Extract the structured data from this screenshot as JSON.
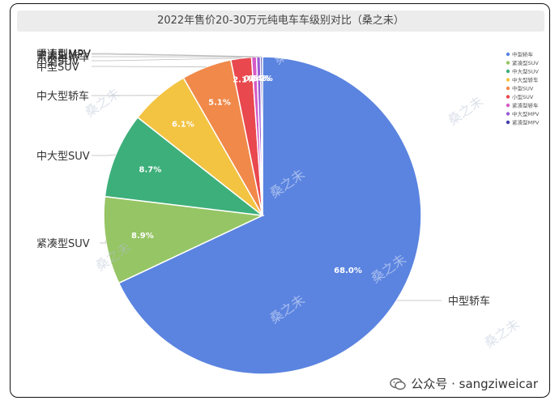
{
  "chart_data": {
    "type": "pie",
    "title": "2022年售价20-30万元纯电车车级别对比（桑之未）",
    "slices": [
      {
        "label": "中型轿车",
        "value": 68.0,
        "display": "68.0%",
        "color": "#5B84E0"
      },
      {
        "label": "紧凑型SUV",
        "value": 8.9,
        "display": "8.9%",
        "color": "#96C565"
      },
      {
        "label": "中大型SUV",
        "value": 8.7,
        "display": "8.7%",
        "color": "#3DAF7A"
      },
      {
        "label": "中大型轿车",
        "value": 6.1,
        "display": "6.1%",
        "color": "#F3C342"
      },
      {
        "label": "中型SUV",
        "value": 5.1,
        "display": "5.1%",
        "color": "#F0894A"
      },
      {
        "label": "小型SUV",
        "value": 2.1,
        "display": "2.1%",
        "color": "#E8484E"
      },
      {
        "label": "紧凑型轿车",
        "value": 0.5,
        "display": "0.5%",
        "color": "#D65AC6"
      },
      {
        "label": "中大型MPV",
        "value": 0.4,
        "display": "0.4%",
        "color": "#9B5BD6"
      },
      {
        "label": "紧凑型MPV",
        "value": 0.2,
        "display": "0.2%",
        "color": "#3F3FA8"
      }
    ],
    "legend": {
      "placement": "top-right",
      "entries": [
        "中型轿车",
        "紧凑型SUV",
        "中大型SUV",
        "中大型轿车",
        "中型SUV",
        "小型SUV",
        "紧凑型轿车",
        "中大型MPV",
        "紧凑型MPV"
      ]
    },
    "watermark": "桑之未"
  },
  "footer": {
    "text": "公众号 · sangziweicar"
  }
}
